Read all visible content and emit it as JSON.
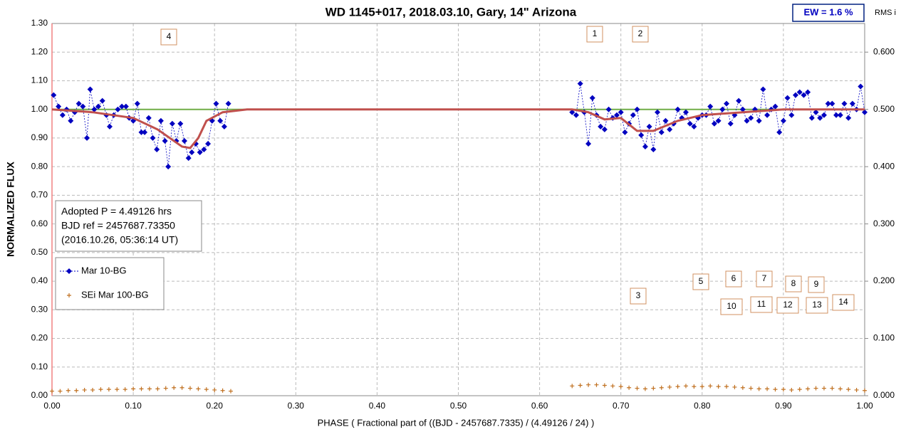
{
  "chart_data": {
    "type": "scatter",
    "title": "WD 1145+017, 2018.03.10, Gary, 14\" Arizona",
    "ew_label": "EW =  1.6 %",
    "y2_title": "RMS i",
    "x_title": "PHASE  ( Fractional part of ((BJD - 2457687.7335)  / (4.49126  / 24) )",
    "y_title": "NORMALIZED  FLUX",
    "info_lines": [
      "Adopted P = 4.49126 hrs",
      "BJD ref = 2457687.73350",
      "(2016.10.26, 05:36:14 UT)"
    ],
    "annotations": [
      "1",
      "2",
      "3",
      "4",
      "5",
      "6",
      "7",
      "8",
      "9",
      "10",
      "11",
      "12",
      "13",
      "14"
    ],
    "xlim": [
      0,
      1
    ],
    "ylim": [
      0,
      1.3
    ],
    "y2lim": [
      0,
      0.65
    ],
    "xticks": [
      {
        "value": 0,
        "label": "0.00"
      },
      {
        "value": 0.1,
        "label": "0.10"
      },
      {
        "value": 0.2,
        "label": "0.20"
      },
      {
        "value": 0.3,
        "label": "0.30"
      },
      {
        "value": 0.4,
        "label": "0.40"
      },
      {
        "value": 0.5,
        "label": "0.50"
      },
      {
        "value": 0.6,
        "label": "0.60"
      },
      {
        "value": 0.7,
        "label": "0.70"
      },
      {
        "value": 0.8,
        "label": "0.80"
      },
      {
        "value": 0.9,
        "label": "0.90"
      },
      {
        "value": 1,
        "label": "1.00"
      }
    ],
    "yticks": [
      {
        "value": 0,
        "label": "0.00"
      },
      {
        "value": 0.1,
        "label": "0.10"
      },
      {
        "value": 0.2,
        "label": "0.20"
      },
      {
        "value": 0.3,
        "label": "0.30"
      },
      {
        "value": 0.4,
        "label": "0.40"
      },
      {
        "value": 0.5,
        "label": "0.50"
      },
      {
        "value": 0.6,
        "label": "0.60"
      },
      {
        "value": 0.7,
        "label": "0.70"
      },
      {
        "value": 0.8,
        "label": "0.80"
      },
      {
        "value": 0.9,
        "label": "0.90"
      },
      {
        "value": 1,
        "label": "1.00"
      },
      {
        "value": 1.1,
        "label": "1.10"
      },
      {
        "value": 1.2,
        "label": "1.20"
      },
      {
        "value": 1.3,
        "label": "1.30"
      }
    ],
    "y2ticks": [
      {
        "value": 0,
        "label": "0.000"
      },
      {
        "value": 0.1,
        "label": "0.100"
      },
      {
        "value": 0.2,
        "label": "0.200"
      },
      {
        "value": 0.3,
        "label": "0.300"
      },
      {
        "value": 0.4,
        "label": "0.400"
      },
      {
        "value": 0.5,
        "label": "0.500"
      },
      {
        "value": 0.6,
        "label": "0.600"
      }
    ],
    "grid": true,
    "reference_line": {
      "value": 1.0,
      "color": "#70ad47"
    },
    "model": {
      "color": "#c0504d",
      "x": [
        0,
        0.05,
        0.1,
        0.13,
        0.16,
        0.17,
        0.18,
        0.19,
        0.21,
        0.24,
        0.64,
        0.66,
        0.68,
        0.7,
        0.72,
        0.74,
        0.77,
        0.8,
        0.85,
        0.9,
        1
      ],
      "values": [
        1.0,
        0.99,
        0.97,
        0.93,
        0.87,
        0.865,
        0.9,
        0.96,
        0.99,
        1.0,
        1.0,
        0.99,
        0.965,
        0.97,
        0.925,
        0.925,
        0.96,
        0.98,
        0.99,
        1.0,
        1.0
      ]
    },
    "series": [
      {
        "name": "Mar 10-BG",
        "color": "#0000c0",
        "marker": "diamond",
        "x": [
          0.002,
          0.008,
          0.013,
          0.018,
          0.023,
          0.028,
          0.033,
          0.038,
          0.043,
          0.047,
          0.052,
          0.057,
          0.062,
          0.067,
          0.071,
          0.076,
          0.081,
          0.086,
          0.091,
          0.095,
          0.1,
          0.105,
          0.11,
          0.114,
          0.119,
          0.124,
          0.129,
          0.134,
          0.139,
          0.143,
          0.148,
          0.153,
          0.158,
          0.163,
          0.168,
          0.172,
          0.177,
          0.182,
          0.187,
          0.192,
          0.197,
          0.202,
          0.207,
          0.212,
          0.217,
          null,
          0.64,
          0.645,
          0.65,
          0.655,
          0.66,
          0.665,
          0.67,
          0.675,
          0.68,
          0.685,
          0.69,
          0.695,
          0.7,
          0.705,
          0.71,
          0.715,
          0.72,
          0.725,
          0.73,
          0.735,
          0.74,
          0.745,
          0.75,
          0.755,
          0.76,
          0.765,
          0.77,
          0.775,
          0.78,
          0.785,
          0.79,
          0.795,
          0.8,
          0.805,
          0.81,
          0.815,
          0.82,
          0.825,
          0.83,
          0.835,
          0.84,
          0.845,
          0.85,
          0.855,
          0.86,
          0.865,
          0.87,
          0.875,
          0.88,
          0.885,
          0.89,
          0.895,
          0.9,
          0.905,
          0.91,
          0.915,
          0.92,
          0.925,
          0.93,
          0.935,
          0.94,
          0.945,
          0.95,
          0.955,
          0.96,
          0.965,
          0.97,
          0.975,
          0.98,
          0.985,
          0.99,
          0.995,
          1
        ],
        "values": [
          1.05,
          1.01,
          0.98,
          1.0,
          0.96,
          0.99,
          1.02,
          1.01,
          0.9,
          1.07,
          1.0,
          1.01,
          1.03,
          0.98,
          0.94,
          0.98,
          1.0,
          1.01,
          1.01,
          0.97,
          0.96,
          1.02,
          0.92,
          0.92,
          0.97,
          0.9,
          0.86,
          0.96,
          0.89,
          0.8,
          0.95,
          0.89,
          0.95,
          0.89,
          0.83,
          0.85,
          0.88,
          0.85,
          0.86,
          0.88,
          0.96,
          1.02,
          0.96,
          0.94,
          1.02,
          null,
          0.99,
          0.98,
          1.09,
          0.99,
          0.88,
          1.04,
          0.98,
          0.94,
          0.93,
          1.0,
          0.97,
          0.98,
          0.99,
          0.92,
          0.95,
          0.98,
          1.0,
          0.91,
          0.87,
          0.94,
          0.86,
          0.99,
          0.92,
          0.96,
          0.93,
          0.95,
          1.0,
          0.97,
          0.99,
          0.95,
          0.94,
          0.97,
          0.98,
          0.98,
          1.01,
          0.95,
          0.96,
          1.0,
          1.02,
          0.95,
          0.98,
          1.03,
          1.0,
          0.96,
          0.97,
          1.0,
          0.96,
          1.07,
          0.98,
          1.0,
          1.01,
          0.92,
          0.96,
          1.04,
          0.98,
          1.05,
          1.06,
          1.05,
          1.06,
          0.97,
          0.99,
          0.97,
          0.98,
          1.02,
          1.02,
          0.98,
          0.98,
          1.02,
          0.97,
          1.02,
          1.0,
          1.08,
          0.99
        ]
      },
      {
        "name": "SEi Mar 100-BG",
        "color": "#c07020",
        "marker": "plus",
        "axis": "y2",
        "x": [
          0,
          0.01,
          0.02,
          0.03,
          0.04,
          0.05,
          0.06,
          0.07,
          0.08,
          0.09,
          0.1,
          0.11,
          0.12,
          0.13,
          0.14,
          0.15,
          0.16,
          0.17,
          0.18,
          0.19,
          0.2,
          0.21,
          0.22,
          null,
          0.64,
          0.65,
          0.66,
          0.67,
          0.68,
          0.69,
          0.7,
          0.71,
          0.72,
          0.73,
          0.74,
          0.75,
          0.76,
          0.77,
          0.78,
          0.79,
          0.8,
          0.81,
          0.82,
          0.83,
          0.84,
          0.85,
          0.86,
          0.87,
          0.88,
          0.89,
          0.9,
          0.91,
          0.92,
          0.93,
          0.94,
          0.95,
          0.96,
          0.97,
          0.98,
          0.99,
          1
        ],
        "values": [
          0.008,
          0.008,
          0.009,
          0.009,
          0.01,
          0.01,
          0.011,
          0.011,
          0.011,
          0.011,
          0.012,
          0.012,
          0.012,
          0.012,
          0.013,
          0.014,
          0.014,
          0.013,
          0.012,
          0.011,
          0.01,
          0.009,
          0.008,
          null,
          0.017,
          0.018,
          0.019,
          0.019,
          0.018,
          0.017,
          0.016,
          0.014,
          0.013,
          0.012,
          0.013,
          0.014,
          0.015,
          0.016,
          0.017,
          0.016,
          0.016,
          0.017,
          0.016,
          0.016,
          0.015,
          0.014,
          0.013,
          0.012,
          0.012,
          0.011,
          0.011,
          0.01,
          0.011,
          0.012,
          0.013,
          0.013,
          0.013,
          0.012,
          0.011,
          0.01,
          0.009
        ]
      }
    ]
  }
}
